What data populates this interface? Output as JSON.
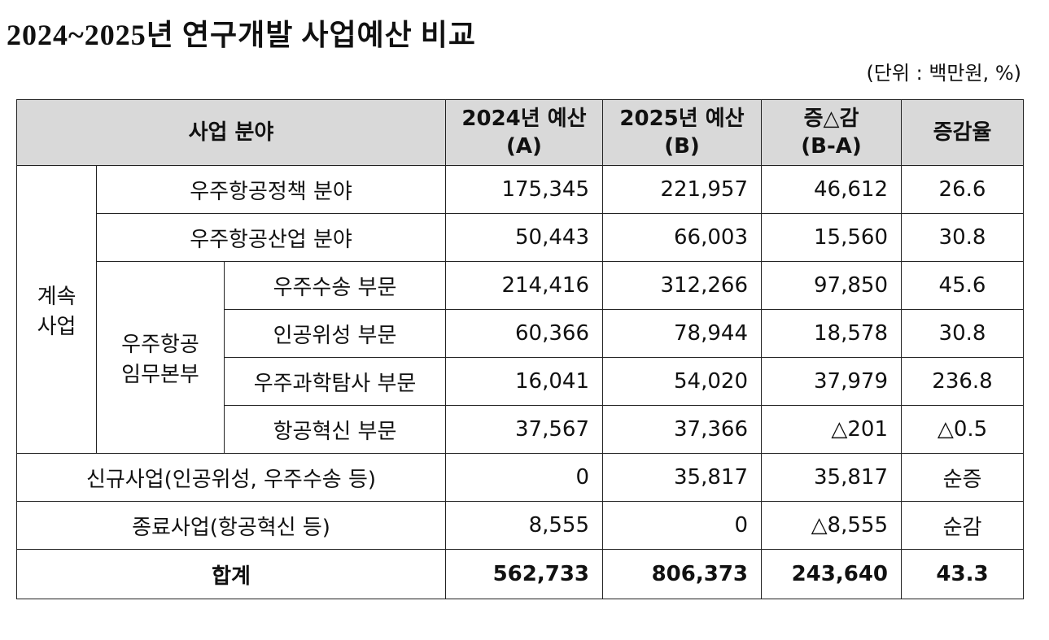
{
  "header": {
    "title": "2024~2025년 연구개발 사업예산 비교",
    "unit": "(단위 : 백만원, %)"
  },
  "table": {
    "columns": [
      [
        "사업 분야"
      ],
      [
        "2024년 예산",
        "(A)"
      ],
      [
        "2025년 예산",
        "(B)"
      ],
      [
        "증△감",
        "(B-A)"
      ],
      [
        "증감율"
      ]
    ],
    "groups": {
      "continuing": [
        "계속",
        "사업"
      ],
      "mission": [
        "우주항공",
        "임무본부"
      ]
    },
    "rows": [
      [
        "우주항공정책 분야",
        "175,345",
        "221,957",
        "46,612",
        "26.6"
      ],
      [
        "우주항공산업 분야",
        "50,443",
        "66,003",
        "15,560",
        "30.8"
      ],
      [
        "우주수송 부문",
        "214,416",
        "312,266",
        "97,850",
        "45.6"
      ],
      [
        "인공위성 부문",
        "60,366",
        "78,944",
        "18,578",
        "30.8"
      ],
      [
        "우주과학탐사 부문",
        "16,041",
        "54,020",
        "37,979",
        "236.8"
      ],
      [
        "항공혁신 부문",
        "37,567",
        "37,366",
        "△201",
        "△0.5"
      ],
      [
        "신규사업(인공위성, 우주수송 등)",
        "0",
        "35,817",
        "35,817",
        "순증"
      ],
      [
        "종료사업(항공혁신 등)",
        "8,555",
        "0",
        "△8,555",
        "순감"
      ]
    ],
    "total": [
      "합계",
      "562,733",
      "806,373",
      "243,640",
      "43.3"
    ]
  }
}
